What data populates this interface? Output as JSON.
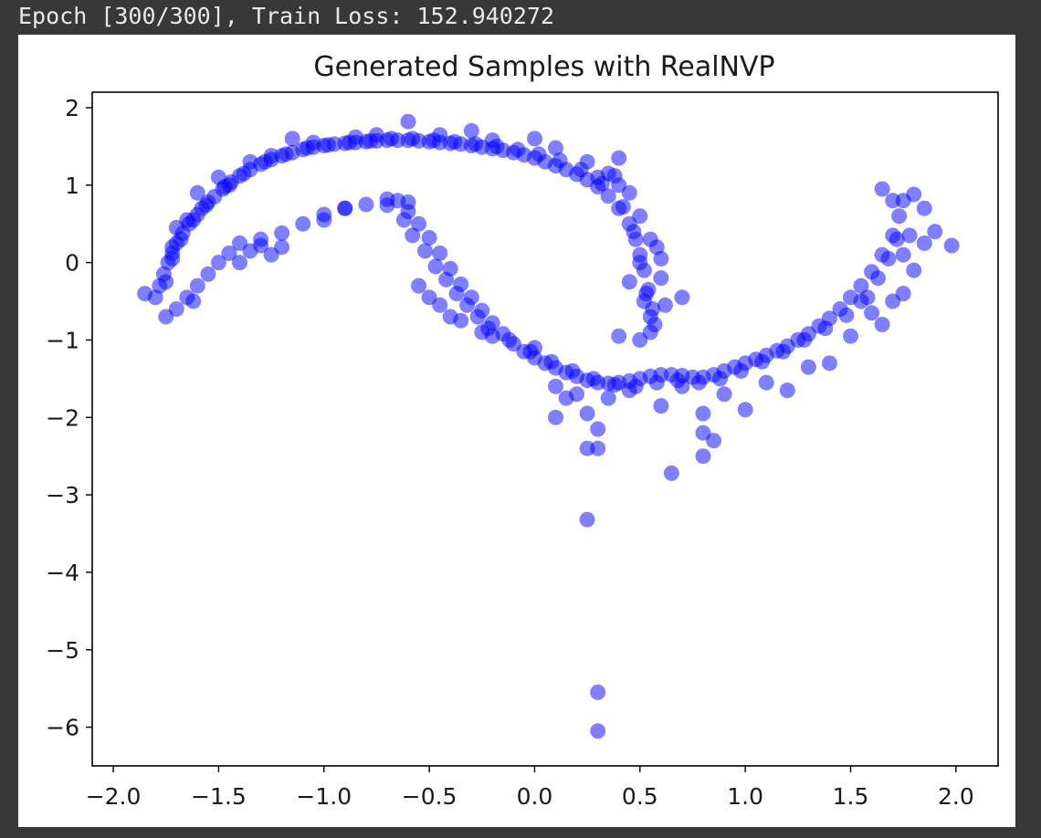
{
  "console": {
    "output_line": "Epoch [300/300], Train Loss: 152.940272"
  },
  "chart_data": {
    "type": "scatter",
    "title": "Generated Samples with RealNVP",
    "xlabel": "",
    "ylabel": "",
    "xlim": [
      -2.1,
      2.2
    ],
    "ylim": [
      -6.5,
      2.2
    ],
    "xticks": [
      -2.0,
      -1.5,
      -1.0,
      -0.5,
      0.0,
      0.5,
      1.0,
      1.5,
      2.0
    ],
    "xtick_labels": [
      "−2.0",
      "−1.5",
      "−1.0",
      "−0.5",
      "0.0",
      "0.5",
      "1.0",
      "1.5",
      "2.0"
    ],
    "yticks": [
      2,
      1,
      0,
      -1,
      -2,
      -3,
      -4,
      -5,
      -6
    ],
    "ytick_labels": [
      "2",
      "1",
      "0",
      "−1",
      "−2",
      "−3",
      "−4",
      "−5",
      "−6"
    ],
    "grid": false,
    "marker_color": "#0000ff",
    "marker_alpha": 0.5,
    "series": [
      {
        "points": [
          [
            -1.8,
            -0.45
          ],
          [
            -1.78,
            -0.3
          ],
          [
            -1.76,
            -0.15
          ],
          [
            -1.74,
            0.0
          ],
          [
            -1.72,
            0.12
          ],
          [
            -1.7,
            0.25
          ],
          [
            -1.67,
            0.38
          ],
          [
            -1.64,
            0.5
          ],
          [
            -1.6,
            0.62
          ],
          [
            -1.56,
            0.74
          ],
          [
            -1.52,
            0.85
          ],
          [
            -1.48,
            0.95
          ],
          [
            -1.44,
            1.04
          ],
          [
            -1.4,
            1.12
          ],
          [
            -1.35,
            1.2
          ],
          [
            -1.3,
            1.27
          ],
          [
            -1.25,
            1.33
          ],
          [
            -1.2,
            1.38
          ],
          [
            -1.15,
            1.42
          ],
          [
            -1.1,
            1.46
          ],
          [
            -1.05,
            1.49
          ],
          [
            -1.0,
            1.51
          ],
          [
            -0.95,
            1.53
          ],
          [
            -0.9,
            1.54
          ],
          [
            -0.85,
            1.55
          ],
          [
            -0.8,
            1.56
          ],
          [
            -0.75,
            1.57
          ],
          [
            -0.7,
            1.58
          ],
          [
            -0.65,
            1.58
          ],
          [
            -0.6,
            1.58
          ],
          [
            -0.55,
            1.57
          ],
          [
            -0.5,
            1.56
          ],
          [
            -0.45,
            1.55
          ],
          [
            -0.4,
            1.54
          ],
          [
            -0.35,
            1.53
          ],
          [
            -0.3,
            1.51
          ],
          [
            -0.25,
            1.49
          ],
          [
            -0.2,
            1.47
          ],
          [
            -0.15,
            1.45
          ],
          [
            -0.1,
            1.42
          ],
          [
            -0.05,
            1.39
          ],
          [
            0.0,
            1.35
          ],
          [
            0.05,
            1.3
          ],
          [
            0.1,
            1.25
          ],
          [
            0.15,
            1.2
          ],
          [
            0.2,
            1.14
          ],
          [
            0.25,
            1.07
          ],
          [
            0.3,
            0.98
          ],
          [
            0.35,
            0.86
          ],
          [
            0.4,
            0.7
          ],
          [
            0.45,
            0.5
          ],
          [
            0.48,
            0.3
          ],
          [
            0.5,
            0.1
          ],
          [
            0.52,
            -0.1
          ],
          [
            0.54,
            -0.35
          ],
          [
            0.56,
            -0.6
          ],
          [
            0.57,
            -0.8
          ],
          [
            -1.75,
            -0.25
          ],
          [
            -1.72,
            0.05
          ],
          [
            -1.68,
            0.3
          ],
          [
            -1.62,
            0.55
          ],
          [
            -1.55,
            0.78
          ],
          [
            -1.47,
            0.98
          ],
          [
            -1.38,
            1.15
          ],
          [
            -1.28,
            1.3
          ],
          [
            -1.18,
            1.4
          ],
          [
            -1.08,
            1.48
          ],
          [
            -0.98,
            1.52
          ],
          [
            -0.88,
            1.55
          ],
          [
            -0.78,
            1.57
          ],
          [
            -0.68,
            1.6
          ],
          [
            -0.58,
            1.6
          ],
          [
            -0.48,
            1.58
          ],
          [
            -0.38,
            1.56
          ],
          [
            -0.28,
            1.53
          ],
          [
            -0.18,
            1.5
          ],
          [
            -0.08,
            1.46
          ],
          [
            0.02,
            1.4
          ],
          [
            0.12,
            1.32
          ],
          [
            0.22,
            1.2
          ],
          [
            0.32,
            1.02
          ],
          [
            0.42,
            0.72
          ],
          [
            0.47,
            0.4
          ],
          [
            0.5,
            0.0
          ],
          [
            0.53,
            -0.4
          ],
          [
            0.55,
            -0.7
          ],
          [
            -1.7,
            -0.6
          ],
          [
            -1.65,
            -0.45
          ],
          [
            -1.6,
            -0.3
          ],
          [
            -1.55,
            -0.15
          ],
          [
            -1.5,
            0.0
          ],
          [
            -1.45,
            0.12
          ],
          [
            -1.4,
            0.25
          ],
          [
            -1.3,
            0.3
          ],
          [
            -1.2,
            0.38
          ],
          [
            -1.1,
            0.5
          ],
          [
            -1.0,
            0.62
          ],
          [
            -0.9,
            0.7
          ],
          [
            -0.8,
            0.75
          ],
          [
            -0.7,
            0.74
          ],
          [
            -0.6,
            0.66
          ],
          [
            -0.55,
            0.5
          ],
          [
            -0.5,
            0.32
          ],
          [
            -0.45,
            0.12
          ],
          [
            -0.4,
            -0.08
          ],
          [
            -0.35,
            -0.28
          ],
          [
            -0.3,
            -0.45
          ],
          [
            -0.25,
            -0.62
          ],
          [
            -0.2,
            -0.78
          ],
          [
            -0.15,
            -0.92
          ],
          [
            -0.1,
            -1.05
          ],
          [
            -0.05,
            -1.15
          ],
          [
            0.0,
            -1.23
          ],
          [
            0.05,
            -1.3
          ],
          [
            0.1,
            -1.36
          ],
          [
            0.15,
            -1.42
          ],
          [
            0.2,
            -1.47
          ],
          [
            0.25,
            -1.52
          ],
          [
            0.3,
            -1.55
          ],
          [
            0.35,
            -1.56
          ],
          [
            0.4,
            -1.55
          ],
          [
            0.45,
            -1.53
          ],
          [
            0.5,
            -1.5
          ],
          [
            0.55,
            -1.47
          ],
          [
            0.6,
            -1.45
          ],
          [
            0.65,
            -1.45
          ],
          [
            0.7,
            -1.46
          ],
          [
            0.75,
            -1.48
          ],
          [
            0.8,
            -1.48
          ],
          [
            0.85,
            -1.45
          ],
          [
            0.9,
            -1.4
          ],
          [
            0.95,
            -1.35
          ],
          [
            1.0,
            -1.3
          ],
          [
            1.05,
            -1.25
          ],
          [
            1.1,
            -1.2
          ],
          [
            1.15,
            -1.14
          ],
          [
            1.2,
            -1.08
          ],
          [
            1.25,
            -1.0
          ],
          [
            1.3,
            -0.92
          ],
          [
            1.35,
            -0.82
          ],
          [
            1.4,
            -0.72
          ],
          [
            1.45,
            -0.6
          ],
          [
            1.5,
            -0.45
          ],
          [
            1.55,
            -0.3
          ],
          [
            1.6,
            -0.12
          ],
          [
            1.65,
            0.1
          ],
          [
            1.7,
            0.35
          ],
          [
            1.73,
            0.6
          ],
          [
            1.75,
            0.8
          ],
          [
            -0.62,
            0.55
          ],
          [
            -0.58,
            0.35
          ],
          [
            -0.52,
            0.15
          ],
          [
            -0.47,
            -0.05
          ],
          [
            -0.42,
            -0.22
          ],
          [
            -0.37,
            -0.4
          ],
          [
            -0.32,
            -0.55
          ],
          [
            -0.27,
            -0.7
          ],
          [
            -0.22,
            -0.85
          ],
          [
            -0.12,
            -1.0
          ],
          [
            -0.02,
            -1.15
          ],
          [
            0.08,
            -1.28
          ],
          [
            0.18,
            -1.4
          ],
          [
            0.28,
            -1.5
          ],
          [
            0.38,
            -1.58
          ],
          [
            0.48,
            -1.6
          ],
          [
            0.58,
            -1.55
          ],
          [
            0.68,
            -1.52
          ],
          [
            0.78,
            -1.55
          ],
          [
            0.88,
            -1.5
          ],
          [
            0.98,
            -1.4
          ],
          [
            1.08,
            -1.28
          ],
          [
            1.18,
            -1.15
          ],
          [
            1.28,
            -1.0
          ],
          [
            1.38,
            -0.85
          ],
          [
            1.48,
            -0.68
          ],
          [
            1.58,
            -0.45
          ],
          [
            1.63,
            -0.2
          ],
          [
            1.68,
            0.05
          ],
          [
            1.72,
            0.3
          ],
          [
            -1.85,
            -0.4
          ],
          [
            -1.75,
            -0.7
          ],
          [
            -1.4,
            0.0
          ],
          [
            -1.35,
            0.15
          ],
          [
            -1.2,
            0.2
          ],
          [
            -0.7,
            0.82
          ],
          [
            -0.65,
            0.8
          ],
          [
            -0.6,
            0.78
          ],
          [
            0.4,
            1.35
          ],
          [
            0.3,
            1.1
          ],
          [
            0.55,
            0.3
          ],
          [
            0.6,
            0.05
          ],
          [
            0.7,
            -0.45
          ],
          [
            0.55,
            -0.9
          ],
          [
            0.2,
            -1.7
          ],
          [
            0.25,
            -1.95
          ],
          [
            0.25,
            -2.4
          ],
          [
            0.3,
            -2.4
          ],
          [
            0.3,
            -2.15
          ],
          [
            0.1,
            -2.0
          ],
          [
            0.6,
            -1.85
          ],
          [
            0.8,
            -1.95
          ],
          [
            0.8,
            -2.2
          ],
          [
            0.85,
            -2.3
          ],
          [
            0.8,
            -2.5
          ],
          [
            0.65,
            -2.72
          ],
          [
            0.25,
            -3.32
          ],
          [
            0.3,
            -5.55
          ],
          [
            0.3,
            -6.05
          ],
          [
            1.0,
            -1.9
          ],
          [
            1.2,
            -1.65
          ],
          [
            1.4,
            -1.3
          ],
          [
            1.5,
            -0.95
          ],
          [
            1.65,
            -0.8
          ],
          [
            1.75,
            -0.4
          ],
          [
            1.8,
            -0.1
          ],
          [
            1.85,
            0.25
          ],
          [
            1.9,
            0.4
          ],
          [
            1.98,
            0.22
          ],
          [
            1.8,
            0.88
          ],
          [
            1.7,
            0.8
          ],
          [
            1.85,
            0.7
          ],
          [
            1.65,
            0.95
          ],
          [
            -1.15,
            1.6
          ],
          [
            -0.6,
            1.82
          ],
          [
            -0.3,
            1.7
          ],
          [
            0.0,
            1.6
          ],
          [
            -1.5,
            1.1
          ],
          [
            -1.6,
            0.9
          ],
          [
            0.45,
            -0.25
          ],
          [
            0.4,
            -0.95
          ],
          [
            -0.5,
            -0.45
          ],
          [
            -0.25,
            -0.9
          ],
          [
            -0.4,
            -0.7
          ],
          [
            0.1,
            -1.6
          ],
          [
            0.15,
            -1.75
          ],
          [
            0.7,
            -1.6
          ],
          [
            0.9,
            -1.7
          ],
          [
            1.1,
            -1.55
          ],
          [
            1.3,
            -1.35
          ],
          [
            1.55,
            -0.5
          ],
          [
            1.75,
            0.1
          ],
          [
            1.7,
            -0.5
          ],
          [
            1.6,
            -0.65
          ],
          [
            1.78,
            0.35
          ],
          [
            -0.9,
            0.7
          ],
          [
            -1.0,
            0.55
          ],
          [
            -1.3,
            0.22
          ],
          [
            -1.25,
            0.1
          ],
          [
            -0.55,
            -0.3
          ],
          [
            -0.45,
            -0.55
          ],
          [
            -0.35,
            -0.75
          ],
          [
            -0.2,
            -0.95
          ],
          [
            0.0,
            -1.1
          ],
          [
            0.35,
            -1.75
          ],
          [
            0.45,
            -1.65
          ],
          [
            0.5,
            -1.0
          ],
          [
            0.52,
            -0.5
          ],
          [
            0.4,
            1.0
          ],
          [
            0.35,
            1.15
          ],
          [
            0.45,
            0.9
          ],
          [
            -1.65,
            0.55
          ],
          [
            -1.7,
            0.45
          ],
          [
            -1.72,
            0.2
          ],
          [
            -1.62,
            -0.5
          ],
          [
            -1.58,
            0.7
          ],
          [
            -1.45,
            1.0
          ],
          [
            -1.35,
            1.3
          ],
          [
            -1.25,
            1.38
          ],
          [
            -1.05,
            1.55
          ],
          [
            -0.85,
            1.62
          ],
          [
            -0.75,
            1.65
          ],
          [
            -0.45,
            1.65
          ],
          [
            -0.2,
            1.58
          ],
          [
            0.1,
            1.48
          ],
          [
            0.25,
            1.3
          ],
          [
            0.38,
            1.12
          ],
          [
            0.5,
            0.6
          ],
          [
            0.58,
            0.2
          ],
          [
            0.6,
            -0.2
          ],
          [
            0.62,
            -0.55
          ]
        ]
      }
    ]
  }
}
